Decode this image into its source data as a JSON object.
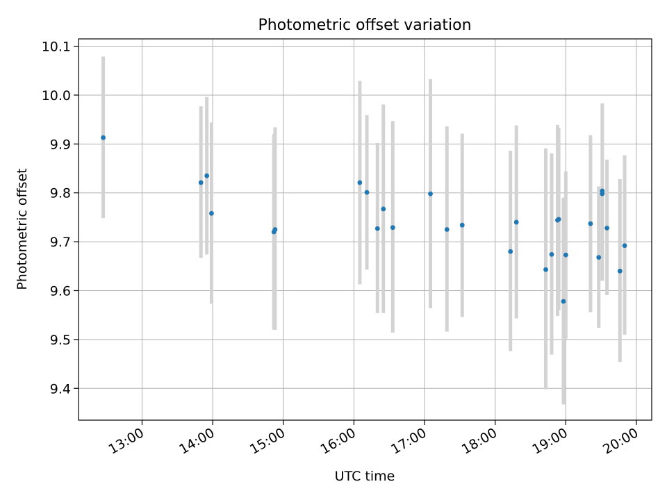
{
  "chart_data": {
    "type": "scatter",
    "title": "Photometric offset variation",
    "xlabel": "UTC time",
    "ylabel": "Photometric offset",
    "x_axis_kind": "time",
    "xlim": [
      "12:06",
      "20:13"
    ],
    "ylim": [
      9.335,
      10.115
    ],
    "xticks": [
      "13:00",
      "14:00",
      "15:00",
      "16:00",
      "17:00",
      "18:00",
      "19:00",
      "20:00"
    ],
    "yticks": [
      9.4,
      9.5,
      9.6,
      9.7,
      9.8,
      9.9,
      10.0,
      10.1
    ],
    "grid": true,
    "legend": "none",
    "marker_color": "#1f77b4",
    "errorbar_color": "#d3d3d3",
    "points": [
      {
        "t": "12:27",
        "y": 9.913,
        "lo": 9.748,
        "hi": 10.079
      },
      {
        "t": "13:50",
        "y": 9.821,
        "lo": 9.667,
        "hi": 9.977
      },
      {
        "t": "13:55",
        "y": 9.835,
        "lo": 9.674,
        "hi": 9.996
      },
      {
        "t": "13:59",
        "y": 9.758,
        "lo": 9.573,
        "hi": 9.944
      },
      {
        "t": "14:52",
        "y": 9.72,
        "lo": 9.52,
        "hi": 9.92
      },
      {
        "t": "14:53",
        "y": 9.725,
        "lo": 9.52,
        "hi": 9.934
      },
      {
        "t": "16:05",
        "y": 9.821,
        "lo": 9.613,
        "hi": 10.029
      },
      {
        "t": "16:11",
        "y": 9.801,
        "lo": 9.643,
        "hi": 9.959
      },
      {
        "t": "16:20",
        "y": 9.727,
        "lo": 9.554,
        "hi": 9.902
      },
      {
        "t": "16:25",
        "y": 9.767,
        "lo": 9.554,
        "hi": 9.981
      },
      {
        "t": "16:33",
        "y": 9.729,
        "lo": 9.514,
        "hi": 9.947
      },
      {
        "t": "17:05",
        "y": 9.798,
        "lo": 9.564,
        "hi": 10.033
      },
      {
        "t": "17:19",
        "y": 9.725,
        "lo": 9.516,
        "hi": 9.936
      },
      {
        "t": "17:32",
        "y": 9.734,
        "lo": 9.546,
        "hi": 9.921
      },
      {
        "t": "18:13",
        "y": 9.68,
        "lo": 9.476,
        "hi": 9.886
      },
      {
        "t": "18:18",
        "y": 9.74,
        "lo": 9.543,
        "hi": 9.938
      },
      {
        "t": "18:43",
        "y": 9.643,
        "lo": 9.398,
        "hi": 9.891
      },
      {
        "t": "18:48",
        "y": 9.674,
        "lo": 9.469,
        "hi": 9.881
      },
      {
        "t": "18:53",
        "y": 9.744,
        "lo": 9.548,
        "hi": 9.939
      },
      {
        "t": "18:54",
        "y": 9.746,
        "lo": 9.56,
        "hi": 9.933
      },
      {
        "t": "18:58",
        "y": 9.578,
        "lo": 9.367,
        "hi": 9.79
      },
      {
        "t": "19:00",
        "y": 9.673,
        "lo": 9.502,
        "hi": 9.844
      },
      {
        "t": "19:21",
        "y": 9.737,
        "lo": 9.556,
        "hi": 9.918
      },
      {
        "t": "19:28",
        "y": 9.668,
        "lo": 9.524,
        "hi": 9.813
      },
      {
        "t": "19:31",
        "y": 9.804,
        "lo": 9.624,
        "hi": 9.983
      },
      {
        "t": "19:31",
        "y": 9.798,
        "lo": 9.62,
        "hi": 9.81
      },
      {
        "t": "19:35",
        "y": 9.728,
        "lo": 9.591,
        "hi": 9.868
      },
      {
        "t": "19:46",
        "y": 9.64,
        "lo": 9.454,
        "hi": 9.828
      },
      {
        "t": "19:50",
        "y": 9.692,
        "lo": 9.51,
        "hi": 9.877
      }
    ]
  }
}
